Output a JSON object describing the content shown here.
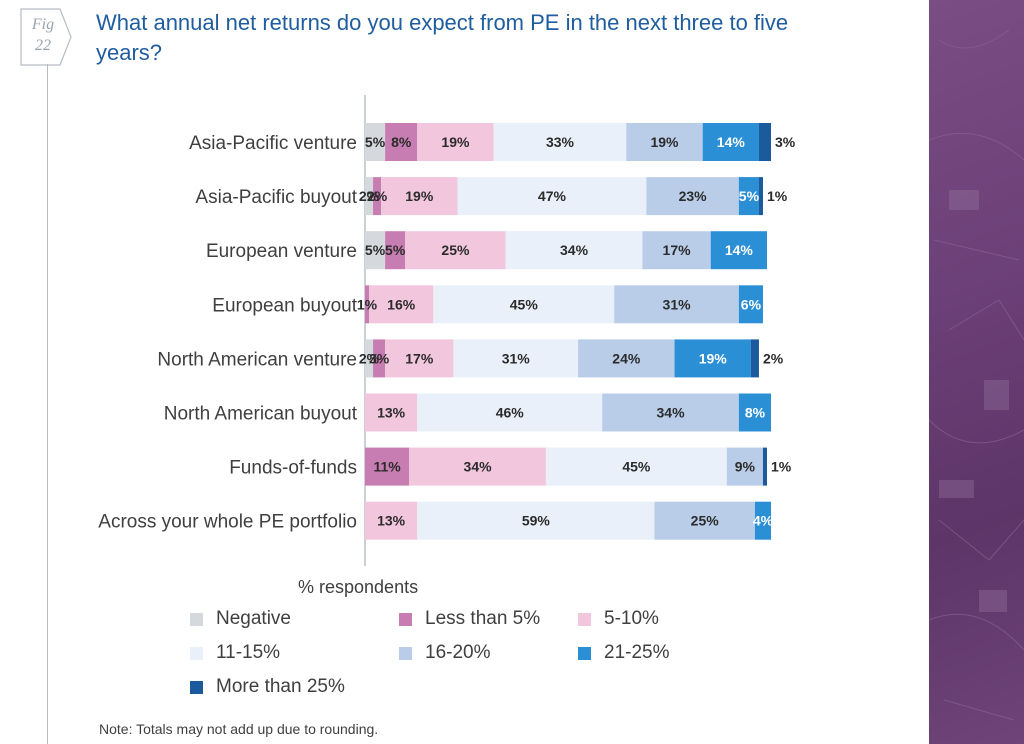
{
  "figure": {
    "label": "Fig",
    "number": "22"
  },
  "title": "What annual net returns do you expect from PE in the next three to five years?",
  "chart_data": {
    "type": "bar",
    "orientation": "horizontal",
    "stacked": true,
    "title": "What annual net returns do you expect from PE in the next three to five years?",
    "xlabel": "% respondents",
    "ylabel": "",
    "xlim": [
      0,
      100
    ],
    "grid": false,
    "legend_position": "bottom",
    "categories": [
      "Asia-Pacific venture",
      "Asia-Pacific buyout",
      "European venture",
      "European buyout",
      "North American venture",
      "North American buyout",
      "Funds-of-funds",
      "Across your whole PE portfolio"
    ],
    "series": [
      {
        "name": "Negative",
        "color": "#d5d8dc",
        "label_color": "#2b2b2b",
        "values": [
          5,
          2,
          5,
          0,
          2,
          0,
          0,
          0
        ]
      },
      {
        "name": "Less than 5%",
        "color": "#c77db1",
        "label_color": "#2b2b2b",
        "values": [
          8,
          2,
          5,
          1,
          3,
          0,
          11,
          0
        ]
      },
      {
        "name": "5-10%",
        "color": "#f2c6dd",
        "label_color": "#2b2b2b",
        "values": [
          19,
          19,
          25,
          16,
          17,
          13,
          34,
          13
        ]
      },
      {
        "name": "11-15%",
        "color": "#e9f0f9",
        "label_color": "#2b2b2b",
        "values": [
          33,
          47,
          34,
          45,
          31,
          46,
          45,
          59
        ]
      },
      {
        "name": "16-20%",
        "color": "#b9cde9",
        "label_color": "#2b2b2b",
        "values": [
          19,
          23,
          17,
          31,
          24,
          34,
          9,
          25
        ]
      },
      {
        "name": "21-25%",
        "color": "#2b8fd6",
        "label_color": "#ffffff",
        "values": [
          14,
          5,
          14,
          6,
          19,
          8,
          0,
          4
        ]
      },
      {
        "name": "More than 25%",
        "color": "#1c5a9e",
        "label_color": "#2b2b2b",
        "values": [
          3,
          1,
          0,
          0,
          2,
          0,
          1,
          0
        ]
      }
    ]
  },
  "note": "Note: Totals may not add up due to rounding."
}
